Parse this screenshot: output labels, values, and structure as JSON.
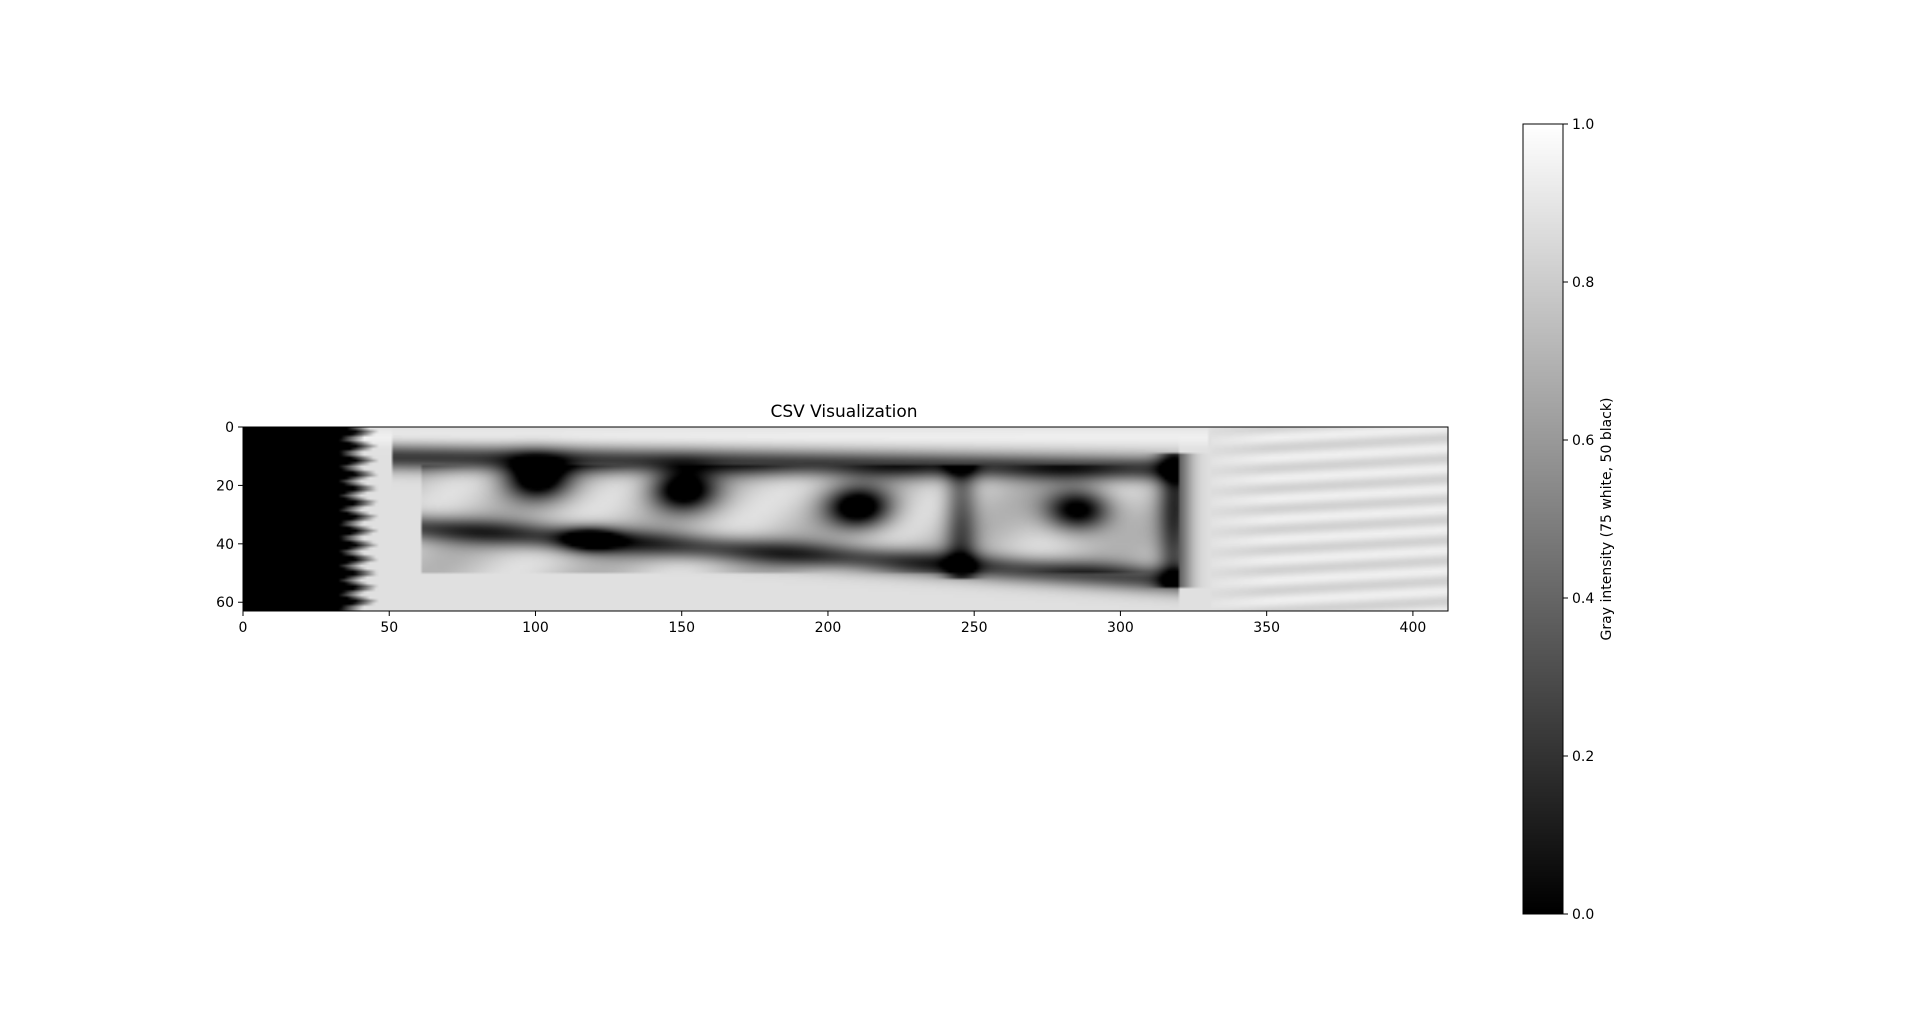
{
  "chart_data": {
    "type": "heatmap",
    "title": "CSV Visualization",
    "xlabel": "",
    "ylabel": "",
    "colormap": "gray",
    "xlim": [
      0,
      412
    ],
    "ylim": [
      63,
      0
    ],
    "x_ticks": [
      0,
      50,
      100,
      150,
      200,
      250,
      300,
      350,
      400
    ],
    "y_ticks": [
      0,
      20,
      40,
      60
    ],
    "colorbar": {
      "label": "Gray intensity (75 white, 50 black)",
      "range": [
        0.0,
        1.0
      ],
      "ticks": [
        "0.0",
        "0.2",
        "0.4",
        "0.6",
        "0.8",
        "1.0"
      ],
      "position": "right"
    },
    "grid": false,
    "features": {
      "left_black_band": {
        "x_range": [
          0,
          35
        ],
        "value": 0.0
      },
      "dark_blobs": [
        {
          "cx": 100,
          "cy": 17,
          "value": 0.1
        },
        {
          "cx": 150,
          "cy": 21,
          "value": 0.1
        },
        {
          "cx": 210,
          "cy": 27,
          "value": 0.0
        },
        {
          "cx": 285,
          "cy": 28,
          "value": 0.0
        }
      ],
      "bright_right_region": {
        "x_range": [
          330,
          412
        ],
        "value": 0.9
      }
    }
  },
  "colors": {
    "background": "#ffffff",
    "axis": "#000000"
  }
}
